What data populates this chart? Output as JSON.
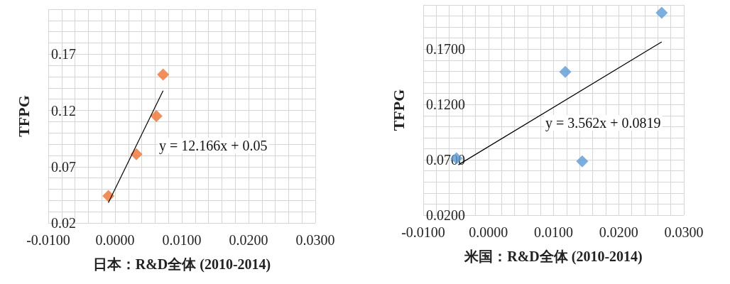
{
  "chart_data": [
    {
      "type": "scatter",
      "xlabel": "日本：R&D全体 (2010-2014)",
      "ylabel": "TFPG",
      "xlim": [
        -0.01,
        0.03
      ],
      "ylim": [
        0.02,
        0.21
      ],
      "xticks": [
        {
          "value": -0.01,
          "label": "-0.0100"
        },
        {
          "value": 0,
          "label": "0.0000"
        },
        {
          "value": 0.01,
          "label": "0.0100"
        },
        {
          "value": 0.02,
          "label": "0.0200"
        },
        {
          "value": 0.03,
          "label": "0.0300"
        }
      ],
      "yticks": [
        0.02,
        0.07,
        0.12,
        0.17
      ],
      "grid": true,
      "marker": "diamond",
      "annotations": [
        "y = 12.166x + 0.05"
      ],
      "series": [
        {
          "color": "#f07030",
          "x": [
            -0.001,
            0.0032,
            0.0062,
            0.0072
          ],
          "values": [
            0.044,
            0.081,
            0.115,
            0.152
          ]
        },
        {
          "type": "line",
          "color": "#000000",
          "marker": "none",
          "x": [
            -0.001,
            0.0072
          ],
          "values": [
            0.038,
            0.1376
          ]
        }
      ]
    },
    {
      "type": "scatter",
      "xlabel": "米国：R&D全体 (2010-2014)",
      "ylabel": "TFPG",
      "xlim": [
        -0.01,
        0.03
      ],
      "ylim": [
        0.02,
        0.21
      ],
      "xticks": [
        {
          "value": -0.01,
          "label": "-0.0100"
        },
        {
          "value": 0,
          "label": "0.0000"
        },
        {
          "value": 0.01,
          "label": "0.0100"
        },
        {
          "value": 0.02,
          "label": "0.0200"
        },
        {
          "value": 0.03,
          "label": "0.0300"
        }
      ],
      "yticks": [
        {
          "value": 0.02,
          "label": "0.0200"
        },
        {
          "value": 0.07,
          "label": "0.0700"
        },
        {
          "value": 0.12,
          "label": "0.1200"
        },
        {
          "value": 0.17,
          "label": "0.1700"
        }
      ],
      "grid": true,
      "marker": "diamond",
      "annotations": [
        "y = 3.562x + 0.0819"
      ],
      "series": [
        {
          "color": "#5b9bd5",
          "x": [
            -0.0049,
            0.0118,
            0.0144,
            0.0266
          ],
          "values": [
            0.0713,
            0.1495,
            0.0687,
            0.2029
          ]
        },
        {
          "type": "line",
          "color": "#000000",
          "marker": "none",
          "x": [
            -0.0046,
            0.0266
          ],
          "values": [
            0.0655,
            0.1766
          ]
        }
      ]
    }
  ]
}
